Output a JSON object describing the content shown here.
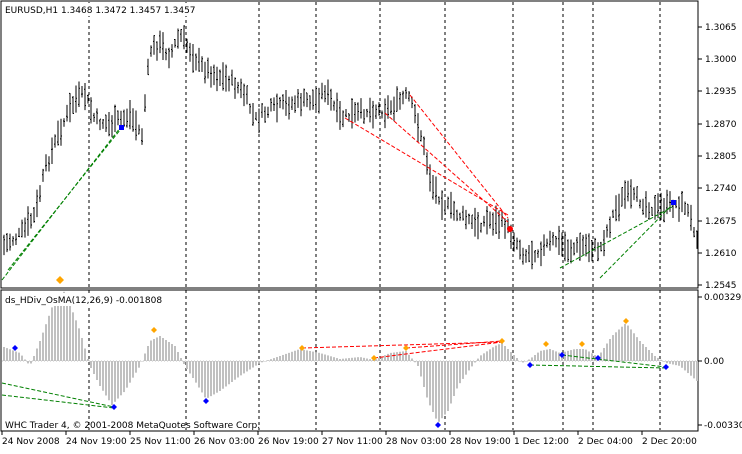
{
  "window": {
    "symbol_header": "EURUSD,H1  1.3468 1.3472 1.3457 1.3457"
  },
  "price_axis": {
    "ticks": [
      "1.3065",
      "1.3000",
      "1.2935",
      "1.2870",
      "1.2805",
      "1.2740",
      "1.2675",
      "1.2610",
      "1.2545"
    ]
  },
  "indicator": {
    "header": "ds_HDiv_OsMA(12,26,9) -0.001808",
    "axis_ticks": [
      "0.003292",
      "0.00",
      "-0.00330"
    ]
  },
  "time_axis": {
    "ticks": [
      "24 Nov 2008",
      "24 Nov 19:00",
      "25 Nov 11:00",
      "26 Nov 03:00",
      "26 Nov 19:00",
      "27 Nov 11:00",
      "28 Nov 03:00",
      "28 Nov 19:00",
      "1 Dec 12:00",
      "2 Dec 04:00",
      "2 Dec 20:00"
    ]
  },
  "copyright": "WHC Trader 4, © 2001-2008 MetaQuotes Software Corp.",
  "colors": {
    "background": "#ffffff",
    "bars": "#000000",
    "histogram": "#c0c0c0",
    "bull_divergence": "#008000",
    "bear_divergence": "#ff0000",
    "bottom_marker": "#0000ff",
    "top_marker": "#ffa500",
    "price_signal_red": "#ff0000"
  }
}
